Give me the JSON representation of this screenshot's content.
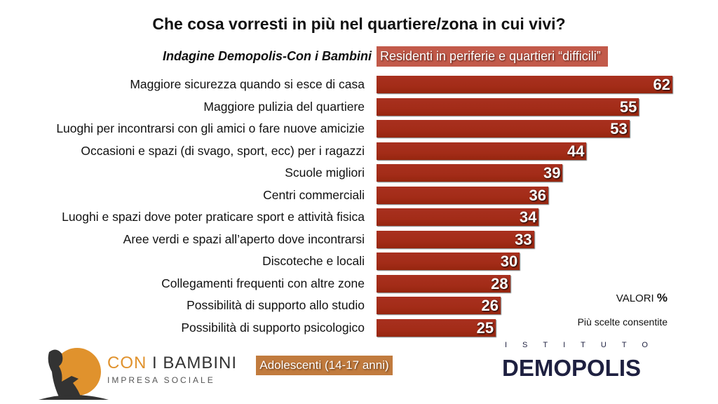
{
  "chart_data": {
    "type": "bar",
    "orientation": "horizontal",
    "title": "Che cosa vorresti in più nel quartiere/zona in cui vivi?",
    "subtitle": "Indagine Demopolis-Con i Bambini",
    "legend": "Residenti in periferie e quartieri “difficili”",
    "categories": [
      "Maggiore sicurezza quando si esce di casa",
      "Maggiore pulizia del quartiere",
      "Luoghi per incontrarsi con gli amici o fare nuove amicizie",
      "Occasioni e spazi (di svago, sport, ecc) per i ragazzi",
      "Scuole migliori",
      "Centri commerciali",
      "Luoghi e spazi dove poter praticare sport e attività fisica",
      "Aree verdi e spazi all’aperto dove incontrarsi",
      "Discoteche e locali",
      "Collegamenti frequenti con altre zone",
      "Possibilità di supporto allo studio",
      "Possibilità di supporto psicologico"
    ],
    "values": [
      62,
      55,
      53,
      44,
      39,
      36,
      34,
      33,
      30,
      28,
      26,
      25
    ],
    "bar_color": "#a32c18",
    "grid": false
  },
  "notes": {
    "valori": "VALORI",
    "percent": "%",
    "multi": "Più scelte consentite"
  },
  "segment": "Adolescenti (14-17 anni)",
  "logos": {
    "con_i_bambini_a": "CON",
    "con_i_bambini_b": " I BAMBINI",
    "impresa": "IMPRESA SOCIALE",
    "istituto": "ISTITUTO",
    "demopolis": "DEMOPOLIS"
  }
}
